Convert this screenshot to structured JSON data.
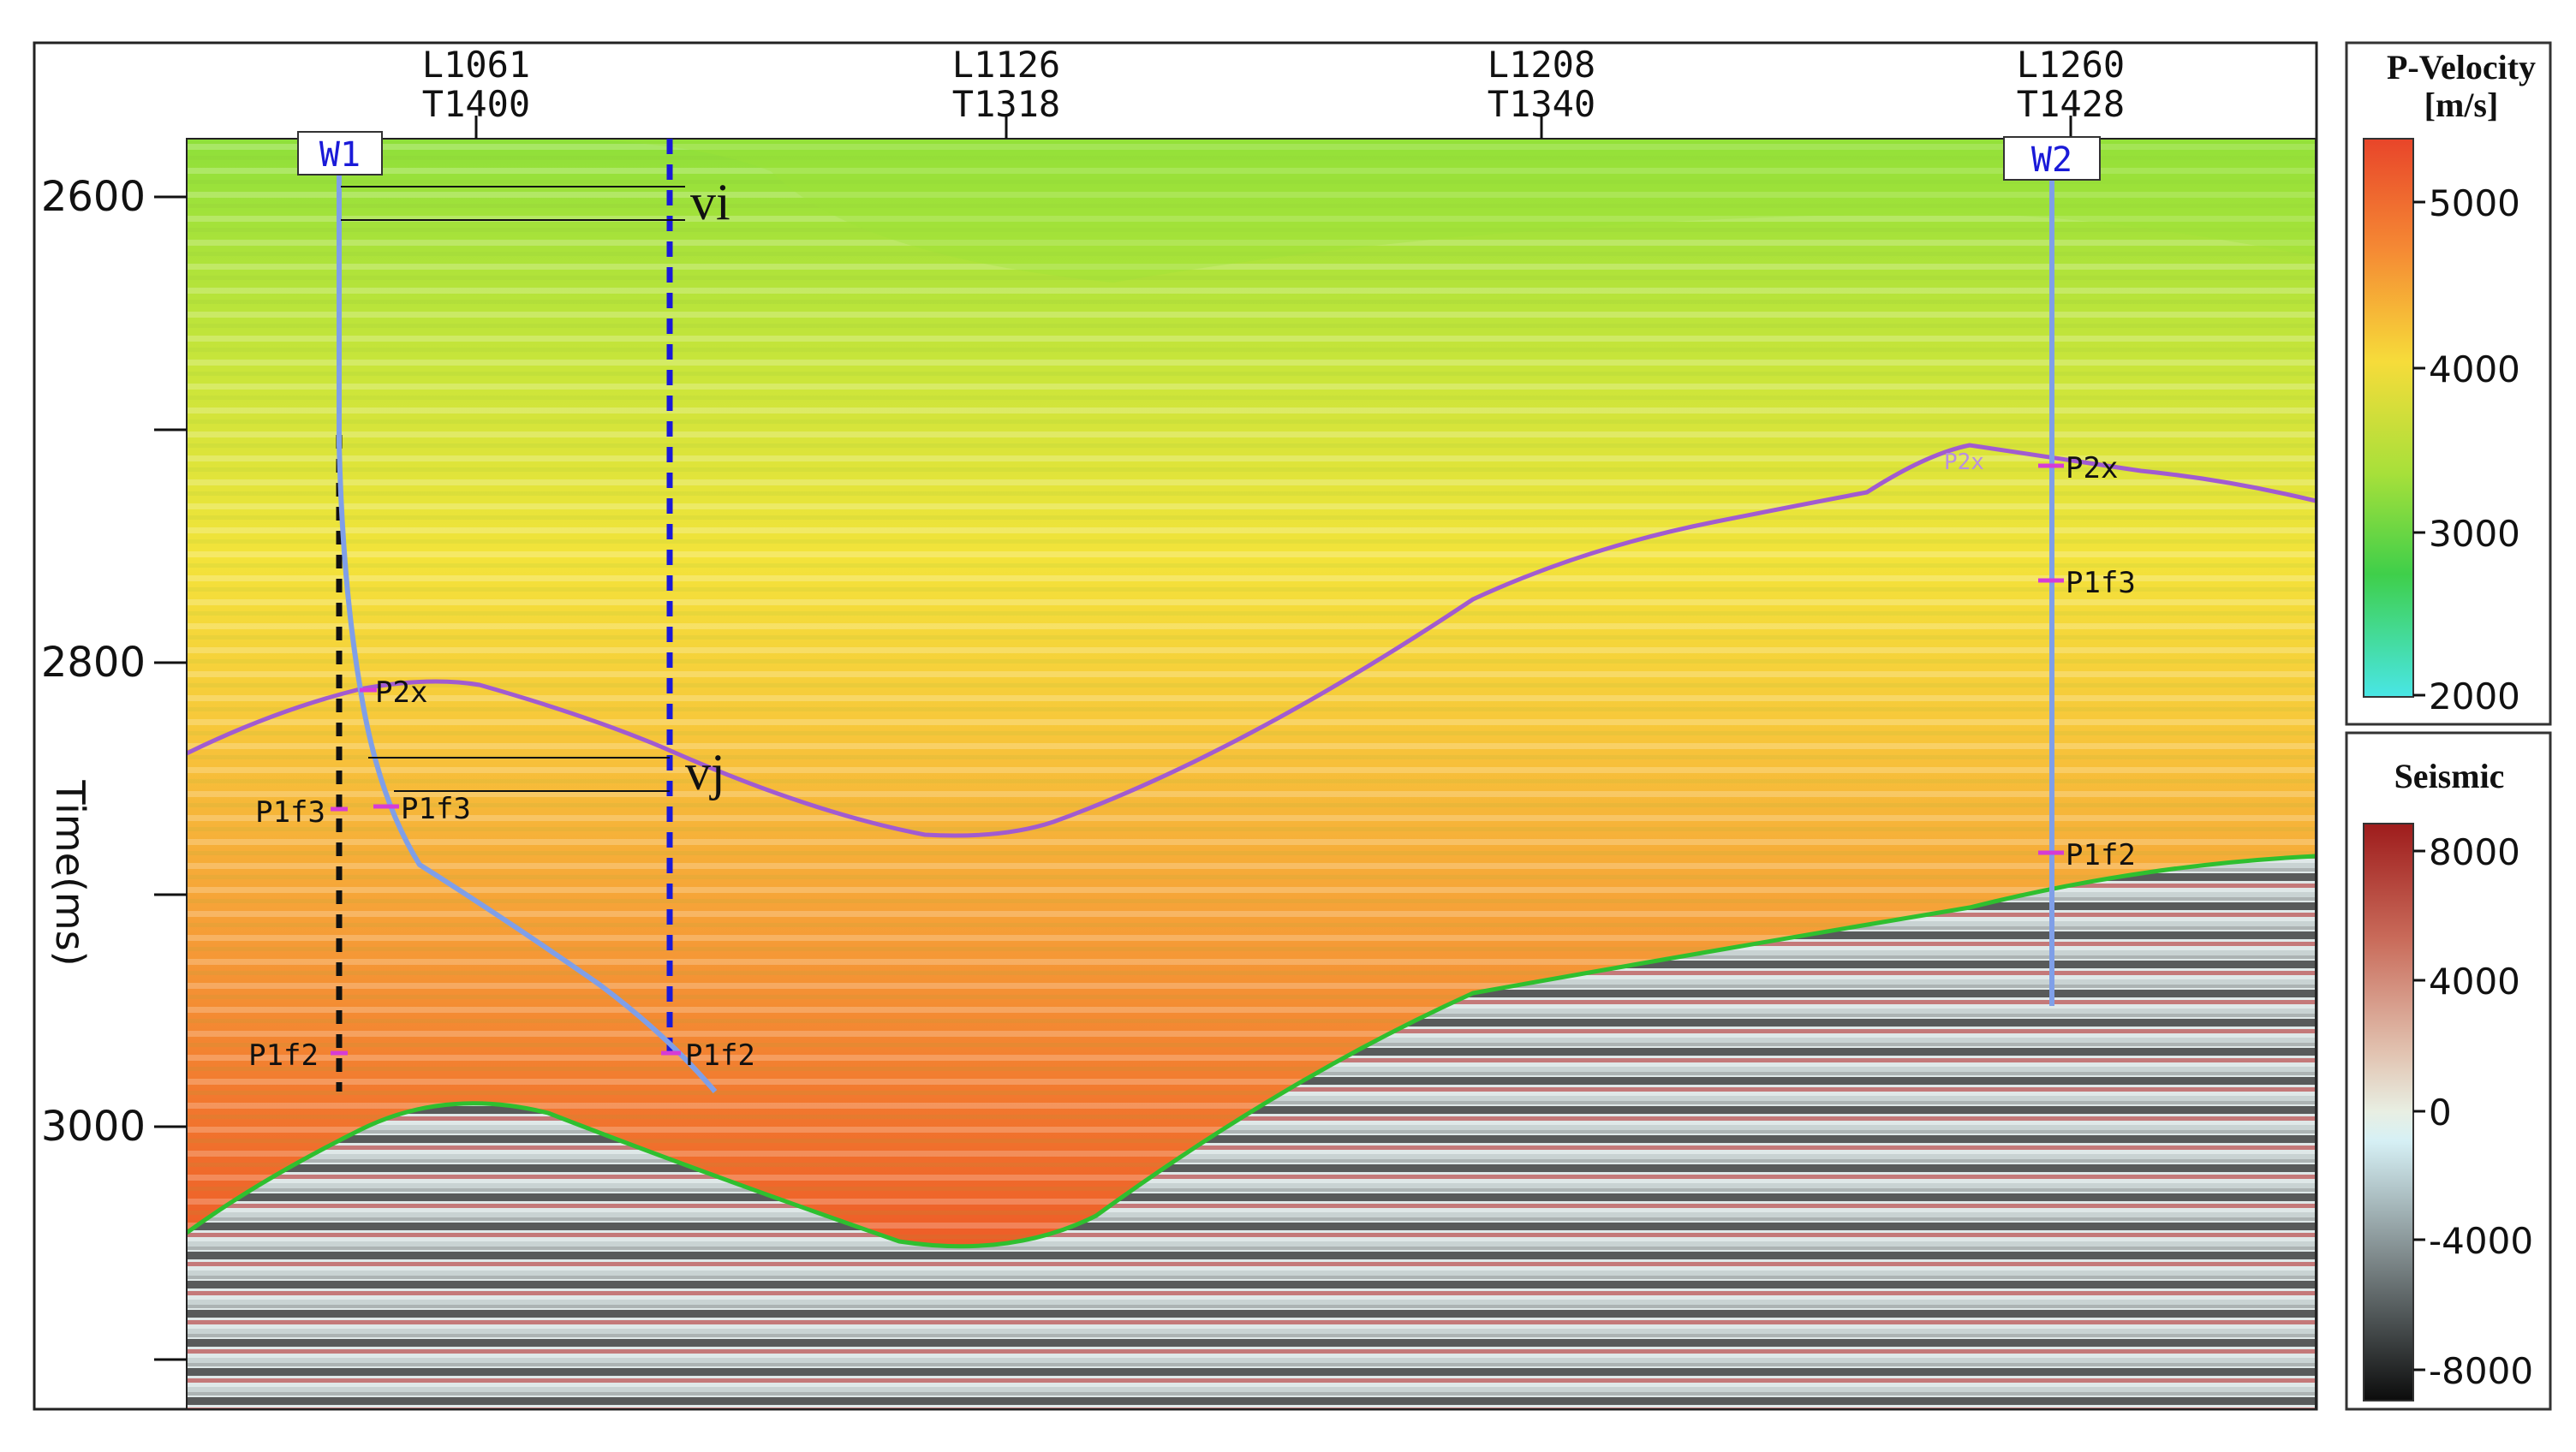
{
  "section": {
    "y_axis_label": "Time(ms)",
    "y_ticks": [
      "2600",
      "2800",
      "3000"
    ],
    "traces": [
      {
        "line": "L1061",
        "trace": "T1400"
      },
      {
        "line": "L1126",
        "trace": "T1318"
      },
      {
        "line": "L1208",
        "trace": "T1340"
      },
      {
        "line": "L1260",
        "trace": "T1428"
      }
    ]
  },
  "wells": [
    {
      "name": "W1",
      "markers": {
        "left_p1f3": "P1f3",
        "left_p1f2": "P1f2",
        "p2x": "P2x",
        "p1f3": "P1f3",
        "p1f2": "P1f2"
      }
    },
    {
      "name": "W2",
      "markers": {
        "p2x_faint": "P2x",
        "p2x": "P2x",
        "p1f3": "P1f3",
        "p1f2": "P1f2"
      }
    }
  ],
  "annotations": {
    "vi": "vi",
    "vj": "vj"
  },
  "colorbar_velocity": {
    "title_line1": "P-Velocity",
    "title_line2": "[m/s]",
    "ticks": [
      "5000",
      "4000",
      "3000",
      "2000"
    ]
  },
  "colorbar_seismic": {
    "title": "Seismic",
    "ticks": [
      "8000",
      "4000",
      "0",
      "-4000",
      "-8000"
    ]
  },
  "colors": {
    "horizon_p2x": "#a15bd0",
    "base_horizon": "#2fbf2f",
    "well_track": "#7f9fe8",
    "dashed_blue": "#1a1ad8",
    "marker": "#d63bd6"
  }
}
